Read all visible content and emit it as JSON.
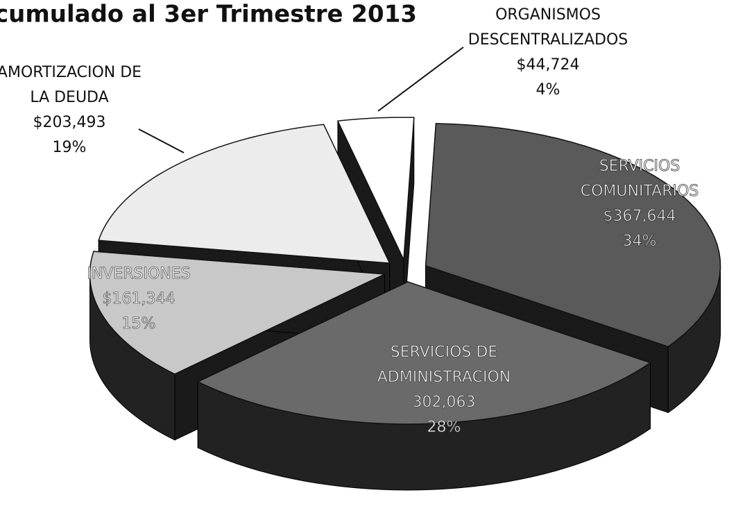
{
  "chart_data": {
    "type": "pie3d",
    "title": "cumulado al 3er Trimestre 2013",
    "categories": [
      "SERVICIOS COMUNITARIOS",
      "SERVICIOS DE ADMINISTRACION",
      "INVERSIONES",
      "AMORTIZACION DE LA DEUDA",
      "ORGANISMOS DESCENTRALIZADOS"
    ],
    "values": [
      367644,
      302063,
      161344,
      203493,
      44724
    ],
    "value_labels": [
      "$367,644",
      "302,063",
      "$161,344",
      "$203,493",
      "$44,724"
    ],
    "percents": [
      34,
      28,
      15,
      19,
      4
    ],
    "percent_labels": [
      "34%",
      "28%",
      "15%",
      "19%",
      "4%"
    ],
    "colors": [
      "#5a5a5a",
      "#6a6a6a",
      "#c8c8c8",
      "#ececec",
      "#ffffff"
    ]
  }
}
